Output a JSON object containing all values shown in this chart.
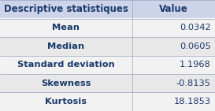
{
  "header": [
    "Descriptive statistiques",
    "Value"
  ],
  "rows": [
    [
      "Mean",
      "0.0342"
    ],
    [
      "Median",
      "0.0605"
    ],
    [
      "Standard deviation",
      "1.1968"
    ],
    [
      "Skewness",
      "-0.8135"
    ],
    [
      "Kurtosis",
      "18.1853"
    ]
  ],
  "header_bg": "#cdd3e8",
  "row_bg_light": "#f2f2f2",
  "row_bg_dark": "#e8e8e8",
  "text_color": "#1a3a6b",
  "border_color": "#9aa4c0",
  "header_fontsize": 8.5,
  "row_fontsize": 8.2,
  "col_split": 0.615
}
